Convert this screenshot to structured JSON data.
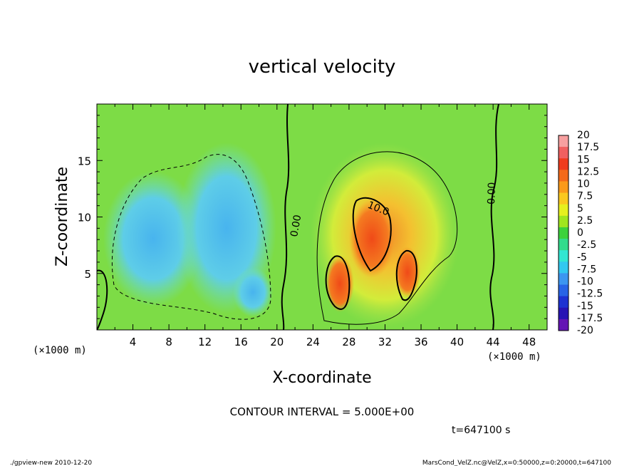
{
  "chart_data": {
    "type": "heatmap",
    "title": "vertical velocity",
    "xlabel": "X-coordinate",
    "ylabel": "Z-coordinate",
    "x_unit": "(×1000 m)",
    "x_ticks": [
      4,
      8,
      12,
      16,
      20,
      24,
      28,
      32,
      36,
      40,
      44,
      48
    ],
    "y_ticks": [
      5,
      10,
      15
    ],
    "xlim": [
      0,
      50
    ],
    "ylim": [
      0,
      20
    ],
    "contour_labels": [
      "0.00",
      "10.0",
      "0.00"
    ],
    "contour_interval_text": "CONTOUR INTERVAL = 5.000E+00",
    "time_text": "t=647100 s",
    "footer_left": "./gpview-new  2010-12-20",
    "footer_right": "MarsCond_VelZ.nc@VelZ,x=0:50000,z=0:20000,t=647100",
    "colorbar": {
      "labels": [
        "20",
        "17.5",
        "15",
        "12.5",
        "10",
        "7.5",
        "5",
        "2.5",
        "0",
        "-2.5",
        "-5",
        "-7.5",
        "-10",
        "-12.5",
        "-15",
        "-17.5",
        "-20"
      ],
      "colors": [
        "#f7a0a0",
        "#f06060",
        "#f03c1e",
        "#f46a1a",
        "#fa9a1a",
        "#fac81e",
        "#e6f01e",
        "#a0e61e",
        "#3cd23c",
        "#32dc8c",
        "#32e6d2",
        "#32c8f0",
        "#3c96f0",
        "#2864e6",
        "#1e32d2",
        "#2814b4",
        "#6414b4"
      ]
    }
  }
}
